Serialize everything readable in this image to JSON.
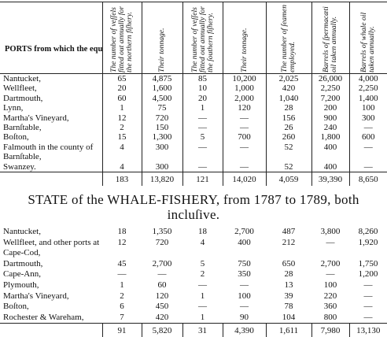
{
  "table1": {
    "port_header": "PORTS from which the equipments were made.",
    "column_headers": [
      "The number of veſſels fitted out annually for the northern fiſhery.",
      "Their tonnage.",
      "The number of veſſels fitted out annually for the ſouthern fiſhery.",
      "Their tonnage.",
      "The number of ſeamen employed.",
      "Barrels of ſpermacæti oil taken annually.",
      "Barrels of whale oil taken annually."
    ],
    "rows": [
      {
        "port": "Nantucket,",
        "values": [
          "65",
          "4,875",
          "85",
          "10,200",
          "2,025",
          "26,000",
          "4,000"
        ]
      },
      {
        "port": "Wellfleet,",
        "values": [
          "20",
          "1,600",
          "10",
          "1,000",
          "420",
          "2,250",
          "2,250"
        ]
      },
      {
        "port": "Dartmouth,",
        "values": [
          "60",
          "4,500",
          "20",
          "2,000",
          "1,040",
          "7,200",
          "1,400"
        ]
      },
      {
        "port": "Lynn,",
        "values": [
          "1",
          "75",
          "1",
          "120",
          "28",
          "200",
          "100"
        ]
      },
      {
        "port": "Martha's Vineyard,",
        "values": [
          "12",
          "720",
          "—",
          "—",
          "156",
          "900",
          "300"
        ]
      },
      {
        "port": "Barnſtable,",
        "values": [
          "2",
          "150",
          "—",
          "—",
          "26",
          "240",
          "—"
        ]
      },
      {
        "port": "Boſton,",
        "values": [
          "15",
          "1,300",
          "5",
          "700",
          "260",
          "1,800",
          "600"
        ]
      },
      {
        "port": "Falmouth in the county of Barnſtable,",
        "values": [
          "4",
          "300",
          "—",
          "—",
          "52",
          "400",
          "—"
        ]
      },
      {
        "port": "Swanzey.",
        "values": [
          "4",
          "300",
          "—",
          "—",
          "52",
          "400",
          "—"
        ]
      }
    ],
    "totals": [
      "183",
      "13,820",
      "121",
      "14,020",
      "4,059",
      "39,390",
      "8,650"
    ]
  },
  "table2": {
    "title": "STATE of the WHALE-FISHERY, from 1787 to 1789, both incluſive.",
    "rows": [
      {
        "port": "Nantucket,",
        "values": [
          "18",
          "1,350",
          "18",
          "2,700",
          "487",
          "3,800",
          "8,260"
        ]
      },
      {
        "port": "Wellfleet, and other ports at Cape-Cod,",
        "values": [
          "12",
          "720",
          "4",
          "400",
          "212",
          "—",
          "1,920"
        ]
      },
      {
        "port": "Dartmouth,",
        "values": [
          "45",
          "2,700",
          "5",
          "750",
          "650",
          "2,700",
          "1,750"
        ]
      },
      {
        "port": "Cape-Ann,",
        "values": [
          "—",
          "—",
          "2",
          "350",
          "28",
          "—",
          "1,200"
        ]
      },
      {
        "port": "Plymouth,",
        "values": [
          "1",
          "60",
          "—",
          "—",
          "13",
          "100",
          "—"
        ]
      },
      {
        "port": "Martha's Vineyard,",
        "values": [
          "2",
          "120",
          "1",
          "100",
          "39",
          "220",
          "—"
        ]
      },
      {
        "port": "Boſton,",
        "values": [
          "6",
          "450",
          "—",
          "—",
          "78",
          "360",
          "—"
        ]
      },
      {
        "port": "Rochester & Wareham,",
        "values": [
          "7",
          "420",
          "1",
          "90",
          "104",
          "800",
          "—"
        ]
      }
    ],
    "totals": [
      "91",
      "5,820",
      "31",
      "4,390",
      "1,611",
      "7,980",
      "13,130"
    ]
  }
}
